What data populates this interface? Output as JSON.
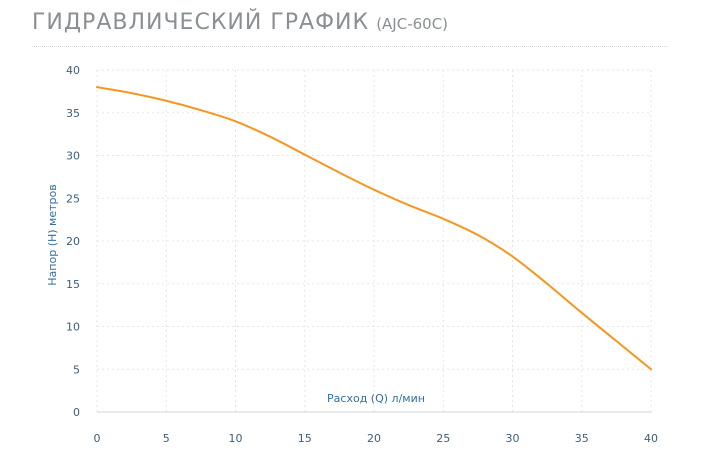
{
  "header": {
    "title": "ГИДРАВЛИЧЕСКИЙ ГРАФИК",
    "model": "(AJC-60C)"
  },
  "colors": {
    "curve": "#f5961e",
    "axis_text": "#2f6fa5",
    "grid": "#e3e6e8",
    "title": "#8a8f94"
  },
  "chart_data": {
    "type": "line",
    "title": "ГИДРАВЛИЧЕСКИЙ ГРАФИК (AJC-60C)",
    "xlabel": "Расход (Q) л/мин",
    "ylabel": "Напор (H) метров",
    "xlim": [
      0,
      40
    ],
    "ylim": [
      0,
      40
    ],
    "xticks": [
      "0",
      "5",
      "10",
      "15",
      "20",
      "25",
      "30",
      "35",
      "40"
    ],
    "yticks": [
      "0",
      "5",
      "10",
      "15",
      "20",
      "25",
      "30",
      "35",
      "40"
    ],
    "grid": true,
    "series": [
      {
        "x": [
          0,
          2.5,
          5,
          7.5,
          10,
          12.5,
          15,
          17.5,
          20,
          22.5,
          25,
          27.5,
          30,
          32.5,
          35,
          37.5,
          40
        ],
        "y": [
          38.0,
          37.3,
          36.4,
          35.3,
          34.0,
          32.2,
          30.1,
          28.0,
          26.0,
          24.2,
          22.6,
          20.7,
          18.2,
          15.0,
          11.6,
          8.3,
          5.0
        ]
      }
    ]
  }
}
